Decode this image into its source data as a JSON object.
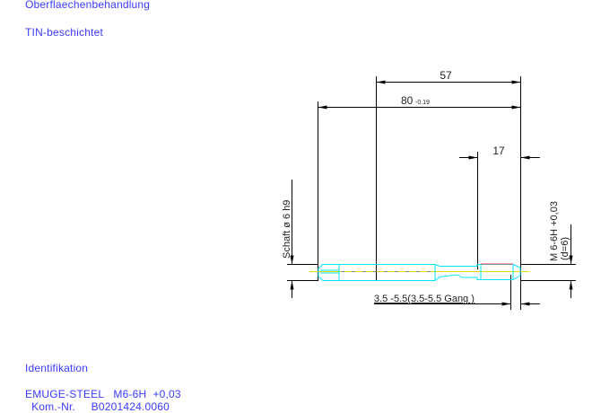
{
  "header": {
    "surface_label": "Oberflaechenbehandlung",
    "surface_value": "TIN-beschichtet"
  },
  "drawing": {
    "dim_57": "57",
    "dim_80": "80",
    "dim_80_tol": "-0.19",
    "dim_17": "17",
    "shank_label": "Schaft ø 6 h9",
    "thread_label": "M 6-6H +0,03",
    "thread_d": "(d=6)",
    "chamfer_label": "3.5 -5.5(3.5-5.5 Gang  )",
    "colors": {
      "outline": "#00e5ff",
      "centerline": "#e8d800",
      "thread_edge": "#ff4040",
      "dimension": "#000000",
      "text": "#3a3aff"
    }
  },
  "footer": {
    "ident_label": "Identifikation",
    "line1": "EMUGE-STEEL   M6-6H  +0,03",
    "line2": "  Kom.-Nr.     B0201424.0060"
  }
}
